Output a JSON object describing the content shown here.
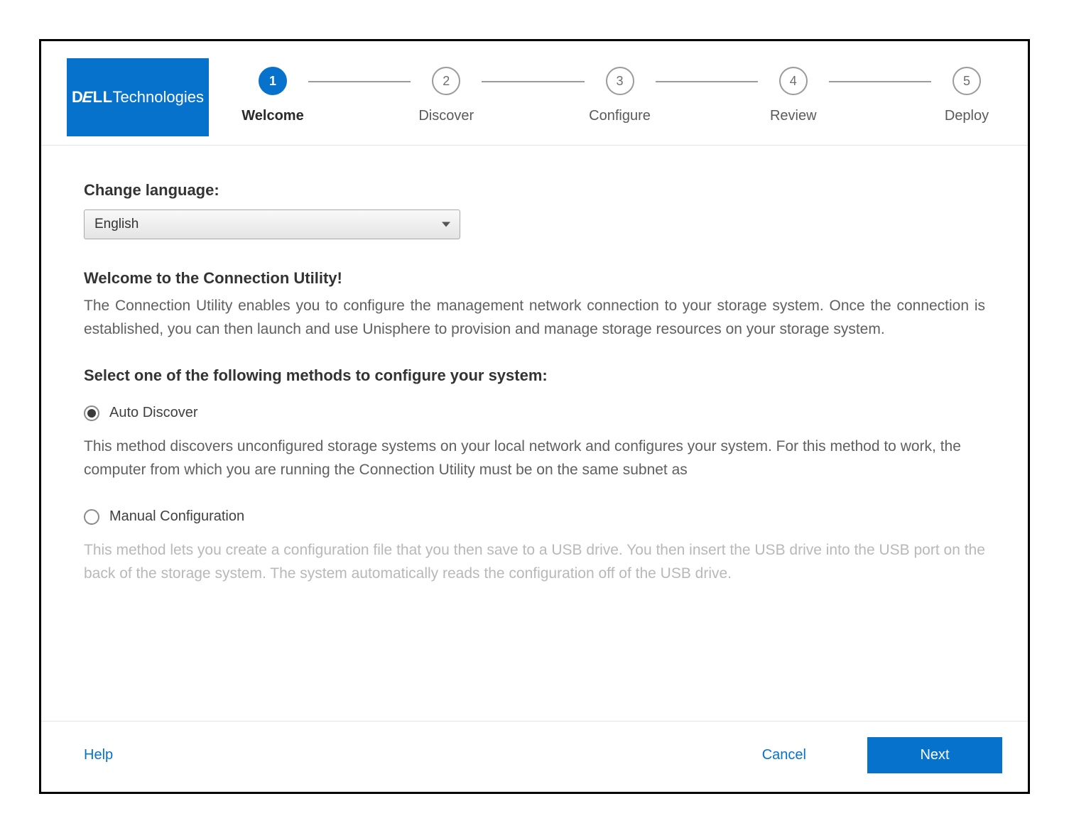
{
  "brand": {
    "logo_text_dell": "D",
    "logo_text_slash": "E",
    "logo_text_ll": "LL",
    "logo_text_tech": "Technologies",
    "logo_bg": "#0672cb",
    "logo_fg": "#ffffff"
  },
  "colors": {
    "primary": "#0672cb",
    "text": "#4a4a4a",
    "text_strong": "#333333",
    "muted": "#b8b8b8",
    "divider": "#e3e3e3",
    "step_inactive": "#9b9b9b"
  },
  "stepper": {
    "active_index": 0,
    "steps": [
      {
        "num": "1",
        "label": "Welcome"
      },
      {
        "num": "2",
        "label": "Discover"
      },
      {
        "num": "3",
        "label": "Configure"
      },
      {
        "num": "4",
        "label": "Review"
      },
      {
        "num": "5",
        "label": "Deploy"
      }
    ]
  },
  "body": {
    "language_label": "Change language:",
    "language_value": "English",
    "welcome_title": "Welcome to the Connection Utility!",
    "welcome_body": "The Connection Utility enables you to configure the management network connection to your storage system. Once the connection is established, you can then launch and use Unisphere to provision and manage storage resources on your storage system.",
    "method_title": "Select one of the following methods to configure your system:",
    "options": [
      {
        "id": "auto",
        "label": "Auto Discover",
        "selected": true,
        "desc": "This method discovers unconfigured storage systems on your local network and configures your system. For this method to work, the computer from which you are running the Connection Utility must be on the same subnet as"
      },
      {
        "id": "manual",
        "label": "Manual Configuration",
        "selected": false,
        "desc": "This method lets you create a configuration file that you then save to a USB drive. You then insert the USB drive into the USB port on the back of the storage system.  The system automatically reads the configuration off of the USB drive."
      }
    ]
  },
  "footer": {
    "help": "Help",
    "cancel": "Cancel",
    "next": "Next"
  }
}
